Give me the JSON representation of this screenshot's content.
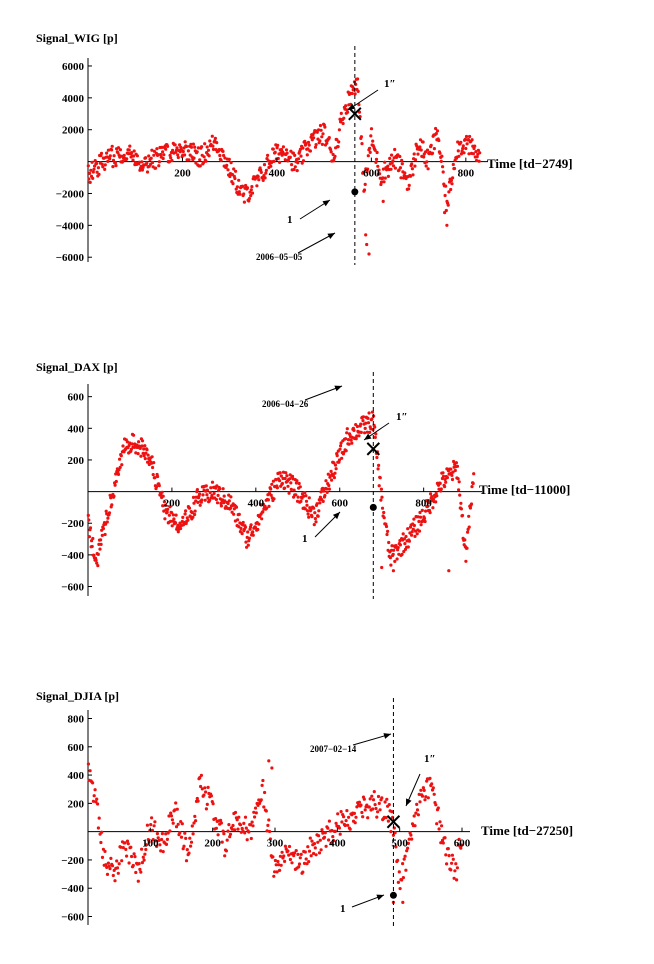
{
  "chart_data": [
    {
      "type": "scatter",
      "id": "wig",
      "ylabel": "Signal_WIG [p]",
      "xlabel": "Time [td−2749]",
      "xlim": [
        0,
        830
      ],
      "ylim": [
        -6300,
        6500
      ],
      "xticks": [
        200,
        400,
        600,
        800
      ],
      "xtick_labels": [
        "200",
        "400",
        "600",
        "800"
      ],
      "yticks": [
        6000,
        4000,
        2000,
        -2000,
        -4000,
        -6000
      ],
      "ytick_labels": [
        "6000",
        "4000",
        "2000",
        "−2000",
        "−4000",
        "−6000"
      ],
      "vline": 565,
      "vline_label": "2006−05−05",
      "marker_x_label": "1″",
      "marker_x": [
        565,
        3000
      ],
      "marker_dot_label": "1",
      "marker_dot": [
        565,
        -1900
      ],
      "anchors": [
        [
          0,
          -800
        ],
        [
          40,
          200
        ],
        [
          80,
          600
        ],
        [
          120,
          -100
        ],
        [
          170,
          600
        ],
        [
          200,
          800
        ],
        [
          240,
          300
        ],
        [
          270,
          1300
        ],
        [
          300,
          -500
        ],
        [
          330,
          -2200
        ],
        [
          360,
          -1200
        ],
        [
          390,
          300
        ],
        [
          420,
          800
        ],
        [
          440,
          -300
        ],
        [
          470,
          1200
        ],
        [
          500,
          1800
        ],
        [
          520,
          300
        ],
        [
          540,
          3000
        ],
        [
          560,
          4500
        ],
        [
          570,
          5200
        ],
        [
          585,
          -1700
        ],
        [
          600,
          1500
        ],
        [
          620,
          -900
        ],
        [
          650,
          200
        ],
        [
          680,
          -1300
        ],
        [
          700,
          1200
        ],
        [
          720,
          0
        ],
        [
          740,
          1900
        ],
        [
          760,
          -2800
        ],
        [
          780,
          800
        ],
        [
          800,
          1200
        ],
        [
          830,
          200
        ]
      ],
      "dropouts": [
        [
          590,
          -5200
        ],
        [
          595,
          -5800
        ],
        [
          588,
          -4600
        ],
        [
          760,
          -4000
        ],
        [
          755,
          -3200
        ],
        [
          625,
          -2500
        ]
      ],
      "noise": 650
    },
    {
      "type": "scatter",
      "id": "dax",
      "ylabel": "Signal_DAX [p]",
      "xlabel": "Time [td−11000]",
      "xlim": [
        0,
        920
      ],
      "ylim": [
        -660,
        680
      ],
      "xticks": [
        200,
        400,
        600,
        800
      ],
      "xtick_labels": [
        "200",
        "400",
        "600",
        "800"
      ],
      "yticks": [
        600,
        400,
        200,
        -200,
        -400,
        -600
      ],
      "ytick_labels": [
        "600",
        "400",
        "200",
        "−200",
        "−400",
        "−600"
      ],
      "vline": 680,
      "vline_label": "2006−04−26",
      "marker_x_label": "1″",
      "marker_x": [
        680,
        270
      ],
      "marker_dot_label": "1",
      "marker_dot": [
        680,
        -100
      ],
      "anchors": [
        [
          0,
          -200
        ],
        [
          20,
          -450
        ],
        [
          50,
          -100
        ],
        [
          90,
          300
        ],
        [
          120,
          300
        ],
        [
          150,
          200
        ],
        [
          180,
          -100
        ],
        [
          220,
          -250
        ],
        [
          260,
          -50
        ],
        [
          300,
          0
        ],
        [
          340,
          -80
        ],
        [
          380,
          -300
        ],
        [
          420,
          -100
        ],
        [
          460,
          100
        ],
        [
          500,
          0
        ],
        [
          540,
          -150
        ],
        [
          580,
          100
        ],
        [
          620,
          350
        ],
        [
          660,
          420
        ],
        [
          680,
          450
        ],
        [
          700,
          -50
        ],
        [
          720,
          -420
        ],
        [
          760,
          -300
        ],
        [
          800,
          -150
        ],
        [
          840,
          50
        ],
        [
          880,
          150
        ],
        [
          900,
          -400
        ],
        [
          920,
          100
        ]
      ],
      "dropouts": [
        [
          728,
          -500
        ],
        [
          700,
          -480
        ],
        [
          860,
          -500
        ],
        [
          900,
          -350
        ]
      ],
      "noise": 65
    },
    {
      "type": "scatter",
      "id": "djia",
      "ylabel": "Signal_DJIA [p]",
      "xlabel": "Time [td−27250]",
      "xlim": [
        0,
        600
      ],
      "ylim": [
        -660,
        860
      ],
      "xticks": [
        100,
        200,
        300,
        400,
        500,
        600
      ],
      "xtick_labels": [
        "100",
        "200",
        "300",
        "400",
        "500",
        "600"
      ],
      "yticks": [
        800,
        600,
        400,
        200,
        -200,
        -400,
        -600
      ],
      "ytick_labels": [
        "800",
        "600",
        "400",
        "200",
        "−200",
        "−400",
        "−600"
      ],
      "vline": 490,
      "vline_label": "2007−02−14",
      "marker_x_label": "1″",
      "marker_x": [
        490,
        70
      ],
      "marker_dot_label": "1",
      "marker_dot": [
        490,
        -450
      ],
      "anchors": [
        [
          0,
          400
        ],
        [
          10,
          250
        ],
        [
          25,
          -150
        ],
        [
          40,
          -300
        ],
        [
          60,
          -100
        ],
        [
          80,
          -300
        ],
        [
          100,
          50
        ],
        [
          120,
          -100
        ],
        [
          140,
          150
        ],
        [
          160,
          -150
        ],
        [
          180,
          350
        ],
        [
          200,
          150
        ],
        [
          220,
          -100
        ],
        [
          240,
          100
        ],
        [
          260,
          0
        ],
        [
          280,
          300
        ],
        [
          300,
          -300
        ],
        [
          320,
          -100
        ],
        [
          340,
          -250
        ],
        [
          360,
          -100
        ],
        [
          380,
          -50
        ],
        [
          400,
          50
        ],
        [
          420,
          100
        ],
        [
          440,
          150
        ],
        [
          460,
          200
        ],
        [
          480,
          150
        ],
        [
          490,
          50
        ],
        [
          500,
          -400
        ],
        [
          510,
          -200
        ],
        [
          530,
          200
        ],
        [
          550,
          350
        ],
        [
          570,
          -100
        ],
        [
          590,
          -300
        ],
        [
          600,
          0
        ]
      ],
      "dropouts": [
        [
          290,
          500
        ],
        [
          295,
          450
        ],
        [
          505,
          -500
        ],
        [
          490,
          -500
        ]
      ],
      "noise": 90
    }
  ]
}
